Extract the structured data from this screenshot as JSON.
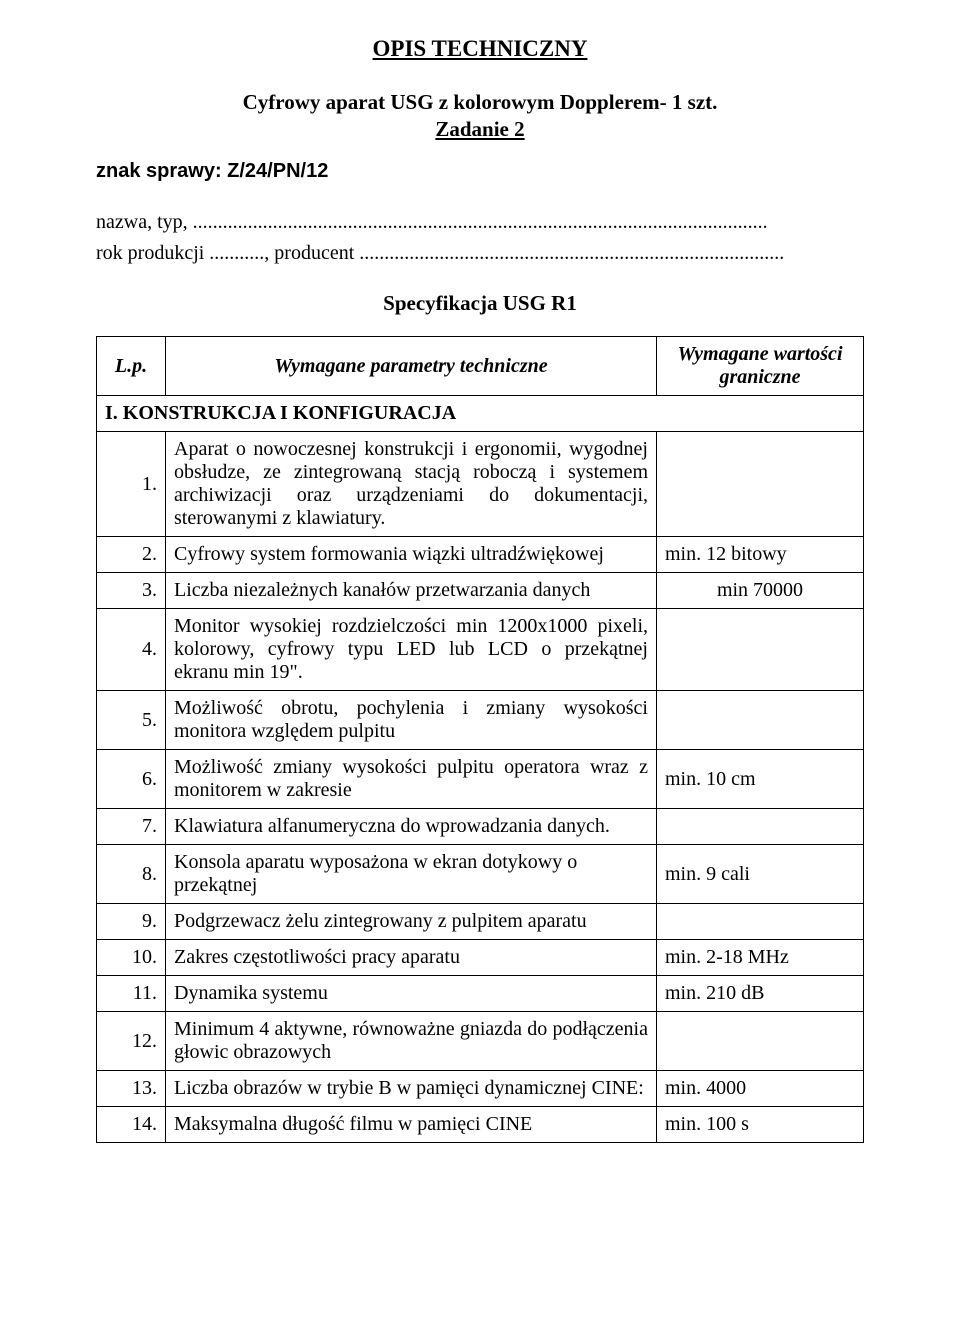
{
  "doc_title": "OPIS  TECHNICZNY",
  "subtitle": "Cyfrowy aparat USG  z kolorowym Dopplerem- 1 szt.",
  "task": "Zadanie 2",
  "case_label": "znak sprawy: Z/24/PN/12",
  "name_type_line": "nazwa, typ, ...................................................................................................................",
  "prod_line": "rok produkcji ...........,  producent .....................................................................................",
  "spec_heading": "Specyfikacja USG R1",
  "header": {
    "lp": "L.p.",
    "param": "Wymagane parametry techniczne",
    "req": "Wymagane wartości  graniczne"
  },
  "section1": "I. KONSTRUKCJA I KONFIGURACJA",
  "rows": [
    {
      "n": "1.",
      "text": "Aparat o nowoczesnej konstrukcji i ergonomii, wygodnej obsłudze, ze zintegrowaną stacją roboczą i systemem archiwizacji oraz urządzeniami do dokumentacji, sterowanymi z klawiatury.",
      "req": ""
    },
    {
      "n": "2.",
      "text": "Cyfrowy system formowania  wiązki ultradźwiękowej",
      "req": "min. 12 bitowy"
    },
    {
      "n": "3.",
      "text": "Liczba niezależnych kanałów przetwarzania danych",
      "req": "min 70000"
    },
    {
      "n": "4.",
      "text": "Monitor wysokiej rozdzielczości min 1200x1000 pixeli, kolorowy, cyfrowy typu LED lub LCD o przekątnej ekranu min 19\".",
      "req": ""
    },
    {
      "n": "5.",
      "text": "Możliwość obrotu, pochylenia i zmiany wysokości monitora względem pulpitu",
      "req": ""
    },
    {
      "n": "6.",
      "text": "Możliwość zmiany wysokości  pulpitu operatora wraz z monitorem w zakresie",
      "req": "min. 10 cm"
    },
    {
      "n": "7.",
      "text": "Klawiatura alfanumeryczna do wprowadzania danych.",
      "req": ""
    },
    {
      "n": "8.",
      "text": "Konsola aparatu wyposażona w ekran dotykowy o przekątnej",
      "req": "min. 9 cali"
    },
    {
      "n": "9.",
      "text": "Podgrzewacz żelu zintegrowany z pulpitem aparatu",
      "req": ""
    },
    {
      "n": "10.",
      "text": "Zakres częstotliwości pracy aparatu",
      "req": "min. 2-18 MHz"
    },
    {
      "n": "11.",
      "text": "Dynamika systemu",
      "req": "min. 210 dB"
    },
    {
      "n": "12.",
      "text": "Minimum 4 aktywne, równoważne gniazda do podłączenia głowic obrazowych",
      "req": ""
    },
    {
      "n": "13.",
      "text": "Liczba obrazów w trybie B w pamięci dynamicznej CINE:",
      "req": "min. 4000"
    },
    {
      "n": "14.",
      "text": "Maksymalna długość filmu w pamięci CINE",
      "req": "min. 100 s"
    }
  ]
}
